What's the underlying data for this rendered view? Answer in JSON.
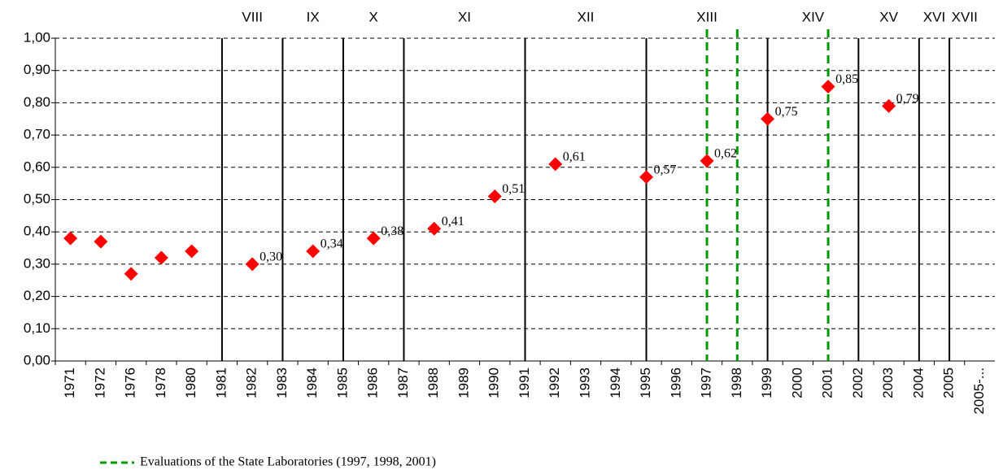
{
  "chart_data": {
    "type": "scatter",
    "categories": [
      "1971",
      "1972",
      "1976",
      "1978",
      "1980",
      "1981",
      "1982",
      "1983",
      "1984",
      "1985",
      "1986",
      "1987",
      "1988",
      "1989",
      "1990",
      "1991",
      "1992",
      "1993",
      "1994",
      "1995",
      "1996",
      "1997",
      "1998",
      "1999",
      "2000",
      "2001",
      "2002",
      "2003",
      "2004",
      "2005",
      "2005-..."
    ],
    "values": [
      0.38,
      0.37,
      0.27,
      0.32,
      0.34,
      null,
      0.3,
      null,
      0.34,
      null,
      0.38,
      null,
      0.41,
      null,
      0.51,
      null,
      0.61,
      null,
      null,
      0.57,
      null,
      0.62,
      null,
      0.75,
      null,
      0.85,
      null,
      0.79,
      null,
      null,
      null
    ],
    "value_labels": [
      null,
      null,
      null,
      null,
      null,
      null,
      "0,30",
      null,
      "0,34",
      null,
      "0,38",
      null,
      "0,41",
      null,
      "0,51",
      null,
      "0,61",
      null,
      null,
      "0,57",
      null,
      "0,62",
      null,
      "0,75",
      null,
      "0,85",
      null,
      "0,79",
      null,
      null,
      null
    ],
    "color": "#ff0000",
    "ylim": [
      0,
      1
    ],
    "yticks": [
      {
        "value": 0,
        "label": "0,00"
      },
      {
        "value": 0.1,
        "label": "0,10"
      },
      {
        "value": 0.2,
        "label": "0,20"
      },
      {
        "value": 0.3,
        "label": "0,30"
      },
      {
        "value": 0.4,
        "label": "0,40"
      },
      {
        "value": 0.5,
        "label": "0,50"
      },
      {
        "value": 0.6,
        "label": "0,60"
      },
      {
        "value": 0.7,
        "label": "0,70"
      },
      {
        "value": 0.8,
        "label": "0,80"
      },
      {
        "value": 0.9,
        "label": "0,90"
      },
      {
        "value": 1,
        "label": "1,00"
      }
    ],
    "grid": true,
    "periods": [
      {
        "label": "VIII",
        "from": "1981",
        "to": "1983"
      },
      {
        "label": "IX",
        "from": "1983",
        "to": "1985"
      },
      {
        "label": "X",
        "from": "1985",
        "to": "1987"
      },
      {
        "label": "XI",
        "from": "1987",
        "to": "1991"
      },
      {
        "label": "XII",
        "from": "1991",
        "to": "1995"
      },
      {
        "label": "XIII",
        "from": "1995",
        "to": "1999"
      },
      {
        "label": "XIV",
        "from": "1999",
        "to": "2002"
      },
      {
        "label": "XV",
        "from": "2002",
        "to": "2004"
      },
      {
        "label": "XVI",
        "from": "2004",
        "to": "2005"
      },
      {
        "label": "XVII",
        "from": "2005",
        "to": "2005-..."
      }
    ],
    "evaluation_years": [
      "1997",
      "1998",
      "2001"
    ],
    "evaluation_color": "#009900",
    "legend": "Evaluations of the State Laboratories (1997, 1998, 2001)"
  }
}
